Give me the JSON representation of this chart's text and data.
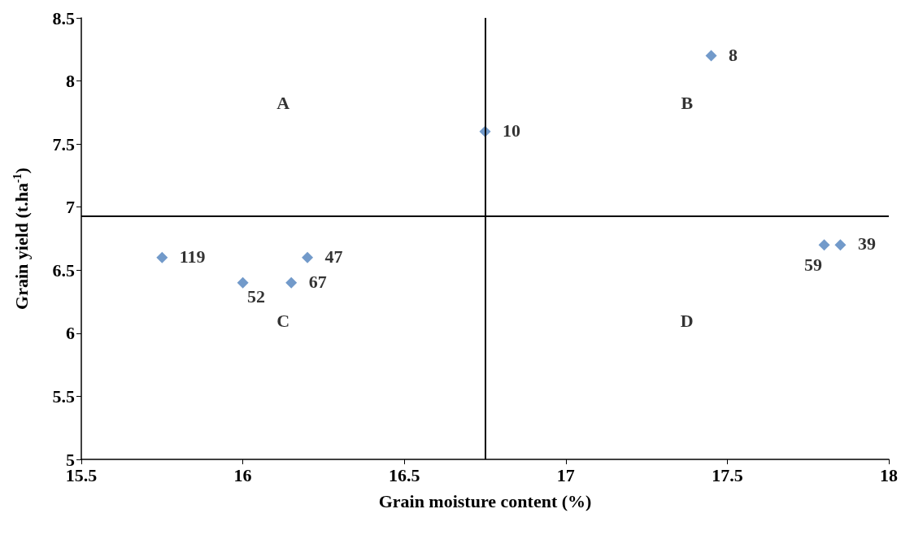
{
  "chart_data": {
    "type": "scatter",
    "xlabel": "Grain moisture content (%)",
    "ylabel": "Grain yield (t.ha$^{-1}$)",
    "x": [
      15.75,
      16,
      16.15,
      16.2,
      16.75,
      17.45,
      17.8,
      17.85
    ],
    "values": [
      6.6,
      6.4,
      6.4,
      6.6,
      7.6,
      8.2,
      6.7,
      6.7
    ],
    "color": "#4f81bd",
    "marker": "diamond",
    "xlim": [
      15.5,
      18
    ],
    "xticks": [
      15.5,
      16,
      16.5,
      17,
      17.5,
      18
    ],
    "ylim": [
      5,
      8.5
    ],
    "yticks": [
      5,
      5.5,
      6,
      6.5,
      7,
      7.5,
      8,
      8.5
    ],
    "grid": false,
    "ref_lines": [
      {
        "axis": "x",
        "value": 16.75,
        "color": "#000000"
      },
      {
        "axis": "y",
        "value": 6.93,
        "color": "#000000"
      }
    ],
    "annotations": [
      {
        "text": "119",
        "x": 15.75,
        "y": 6.6
      },
      {
        "text": "52",
        "x": 16,
        "y": 6.4
      },
      {
        "text": "67",
        "x": 16.15,
        "y": 6.4
      },
      {
        "text": "47",
        "x": 16.2,
        "y": 6.6
      },
      {
        "text": "10",
        "x": 16.75,
        "y": 7.6
      },
      {
        "text": "8",
        "x": 17.45,
        "y": 8.2
      },
      {
        "text": "59",
        "x": 17.8,
        "y": 6.7
      },
      {
        "text": "39",
        "x": 17.85,
        "y": 6.7
      },
      "A",
      "B",
      "C",
      "D"
    ]
  }
}
